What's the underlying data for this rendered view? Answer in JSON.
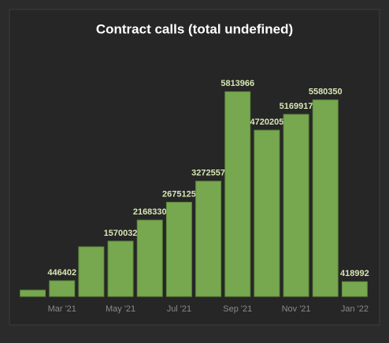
{
  "chart_data": {
    "type": "bar",
    "title": "Contract calls (total undefined)",
    "categories": [
      null,
      "Mar '21",
      null,
      "May '21",
      null,
      "Jul '21",
      null,
      "Sep '21",
      null,
      "Nov '21",
      null,
      "Jan '22"
    ],
    "values": [
      180000,
      446402,
      1410000,
      1570032,
      2168330,
      2675125,
      3272557,
      5813966,
      4720205,
      5169917,
      5580350,
      418992
    ],
    "value_labels": [
      null,
      "446402",
      null,
      "1570032",
      "2168330",
      "2675125",
      "3272557",
      "5813966",
      "4720205",
      "5169917",
      "5580350",
      "418992"
    ],
    "color": "#77a84f",
    "ylim": [
      0,
      6000000
    ]
  }
}
